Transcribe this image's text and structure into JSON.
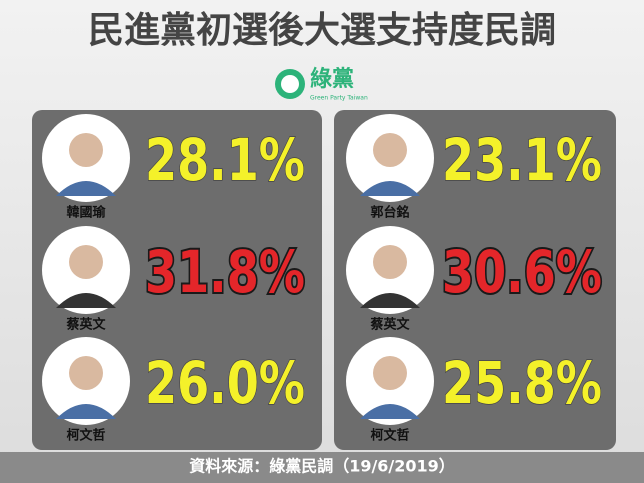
{
  "header": {
    "title": "民進黨初選後大選支持度民調",
    "logo": "綠黨",
    "logo_subtitle": "Green Party Taiwan"
  },
  "panels": [
    {
      "candidates": [
        {
          "name": "韓國瑜",
          "percent": "28.1%",
          "color": "#f4f12a"
        },
        {
          "name": "蔡英文",
          "percent": "31.8%",
          "color": "#e4262a"
        },
        {
          "name": "柯文哲",
          "percent": "26.0%",
          "color": "#f4f12a"
        }
      ]
    },
    {
      "candidates": [
        {
          "name": "郭台銘",
          "percent": "23.1%",
          "color": "#f4f12a"
        },
        {
          "name": "蔡英文",
          "percent": "30.6%",
          "color": "#e4262a"
        },
        {
          "name": "柯文哲",
          "percent": "25.8%",
          "color": "#f4f12a"
        }
      ]
    }
  ],
  "footer": {
    "source": "資料來源：綠黨民調（19/6/2019）"
  }
}
